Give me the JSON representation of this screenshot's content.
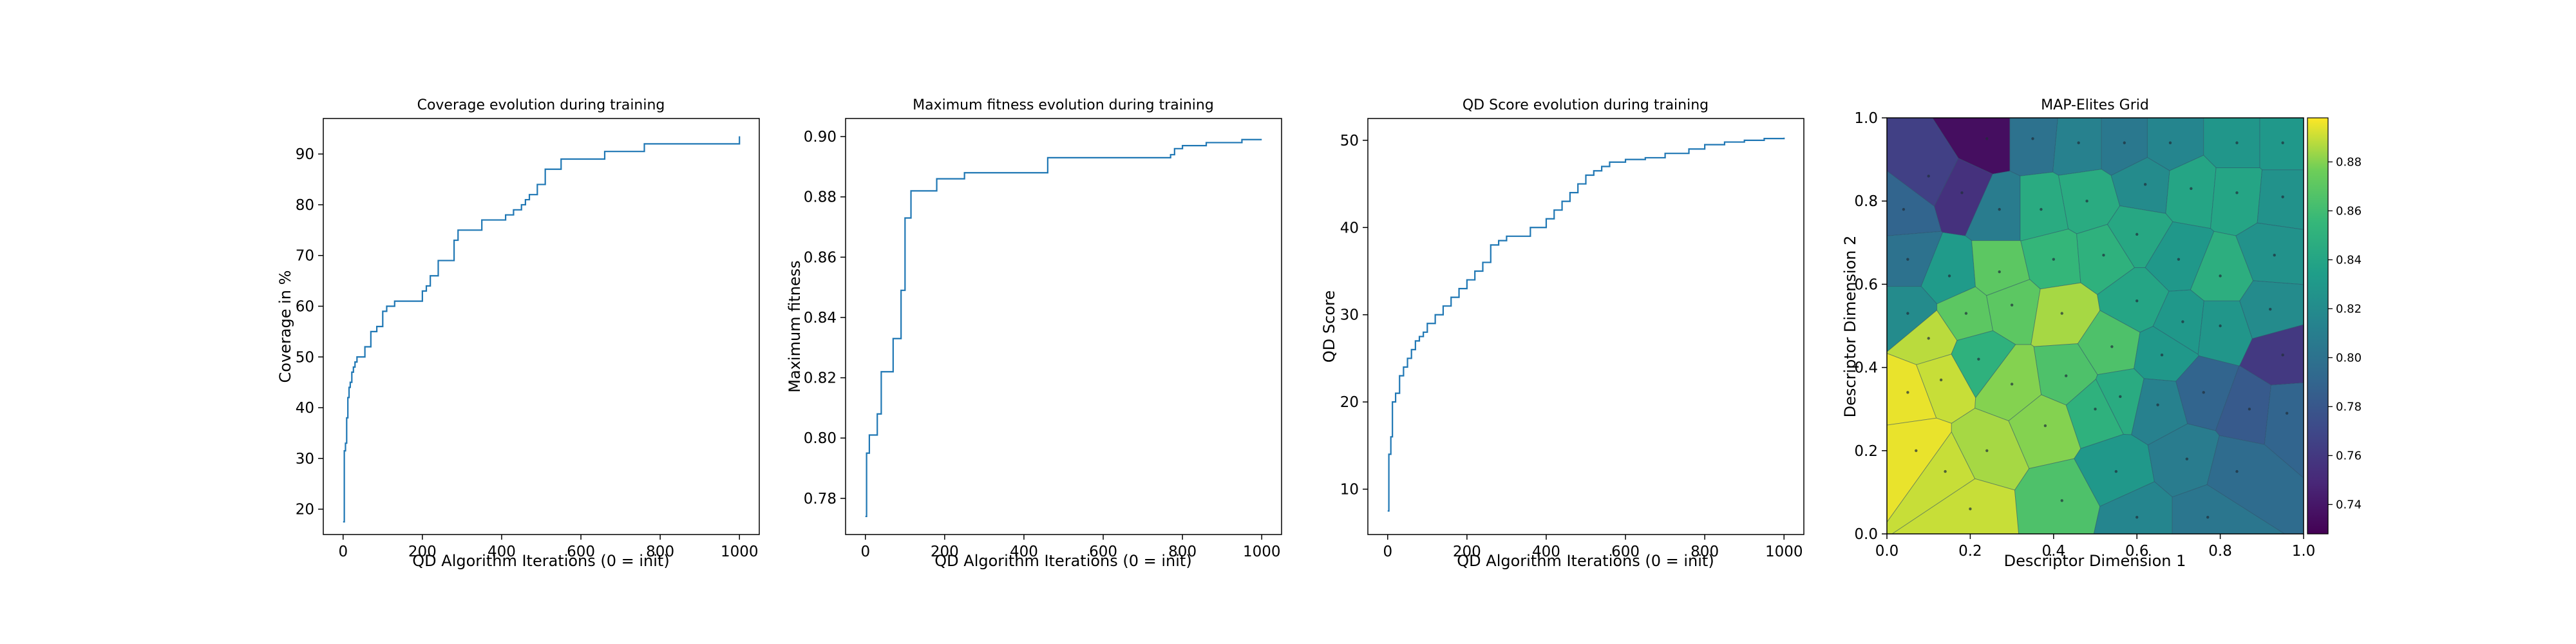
{
  "chart_data": [
    {
      "type": "line",
      "title": "Coverage evolution during training",
      "xlabel": "QD Algorithm Iterations (0 = init)",
      "ylabel": "Coverage in %",
      "xlim": [
        -50,
        1050
      ],
      "ylim": [
        15,
        97
      ],
      "xticks": [
        0,
        200,
        400,
        600,
        800,
        1000
      ],
      "yticks": [
        20,
        30,
        40,
        50,
        60,
        70,
        80,
        90
      ],
      "line_color": "#1f77b4",
      "x": [
        0,
        3,
        6,
        9,
        12,
        15,
        18,
        22,
        26,
        30,
        35,
        45,
        55,
        70,
        85,
        100,
        110,
        130,
        150,
        170,
        200,
        210,
        220,
        240,
        270,
        280,
        290,
        300,
        350,
        400,
        410,
        420,
        430,
        450,
        460,
        470,
        490,
        510,
        550,
        660,
        760,
        1000
      ],
      "y": [
        17.5,
        31.5,
        33,
        38,
        42,
        44,
        45,
        47,
        48,
        49,
        50,
        50,
        52,
        55,
        56,
        59,
        60,
        61,
        61,
        61,
        63,
        64,
        66,
        69,
        69,
        73,
        75,
        75,
        77,
        77,
        78,
        78,
        79,
        80,
        81,
        82,
        84,
        87,
        89,
        90.5,
        92,
        93.5
      ]
    },
    {
      "type": "line",
      "title": "Maximum fitness evolution during training",
      "xlabel": "QD Algorithm Iterations (0 = init)",
      "ylabel": "Maximum fitness",
      "xlim": [
        -50,
        1050
      ],
      "ylim": [
        0.768,
        0.906
      ],
      "xticks": [
        0,
        200,
        400,
        600,
        800,
        1000
      ],
      "yticks": [
        0.78,
        0.8,
        0.82,
        0.84,
        0.86,
        0.88,
        0.9
      ],
      "line_color": "#1f77b4",
      "x": [
        0,
        3,
        10,
        30,
        40,
        70,
        90,
        100,
        115,
        130,
        150,
        180,
        250,
        460,
        770,
        780,
        800,
        860,
        900,
        950,
        1000
      ],
      "y": [
        0.774,
        0.795,
        0.801,
        0.808,
        0.822,
        0.833,
        0.849,
        0.873,
        0.882,
        0.882,
        0.882,
        0.886,
        0.888,
        0.893,
        0.894,
        0.896,
        0.897,
        0.898,
        0.898,
        0.899,
        0.899
      ]
    },
    {
      "type": "line",
      "title": "QD Score evolution during training",
      "xlabel": "QD Algorithm Iterations (0 = init)",
      "ylabel": "QD Score",
      "xlim": [
        -50,
        1050
      ],
      "ylim": [
        4.8,
        52.5
      ],
      "xticks": [
        0,
        200,
        400,
        600,
        800,
        1000
      ],
      "yticks": [
        10,
        20,
        30,
        40,
        50
      ],
      "line_color": "#1f77b4",
      "x": [
        0,
        3,
        8,
        12,
        20,
        30,
        40,
        50,
        60,
        70,
        80,
        90,
        100,
        120,
        140,
        160,
        180,
        200,
        220,
        240,
        260,
        280,
        300,
        330,
        360,
        390,
        400,
        420,
        440,
        460,
        480,
        500,
        520,
        540,
        560,
        600,
        650,
        700,
        760,
        800,
        850,
        900,
        950,
        1000
      ],
      "y": [
        7.5,
        14,
        16,
        20,
        21,
        23,
        24,
        25,
        26,
        27,
        27.5,
        28,
        29,
        30,
        31,
        32,
        33,
        34,
        35,
        36,
        38,
        38.5,
        39,
        39,
        40,
        40,
        41,
        42,
        43,
        44,
        45,
        46,
        46.5,
        47,
        47.5,
        47.8,
        48,
        48.5,
        49,
        49.5,
        49.8,
        50,
        50.2,
        50.3
      ]
    },
    {
      "type": "heatmap",
      "title": "MAP-Elites Grid",
      "xlabel": "Descriptor Dimension 1",
      "ylabel": "Descriptor Dimension 2",
      "xlim": [
        0.0,
        1.0
      ],
      "ylim": [
        0.0,
        1.0
      ],
      "xticks": [
        "0.0",
        "0.2",
        "0.4",
        "0.6",
        "0.8",
        "1.0"
      ],
      "yticks": [
        "0.0",
        "0.2",
        "0.4",
        "0.6",
        "0.8",
        "1.0"
      ],
      "colorbar": {
        "colormap": "viridis",
        "vmin": 0.728,
        "vmax": 0.898,
        "ticks": [
          "0.74",
          "0.76",
          "0.78",
          "0.80",
          "0.82",
          "0.84",
          "0.86",
          "0.88"
        ]
      },
      "cells": [
        {
          "x": 0.24,
          "y": 0.95,
          "value": 0.735
        },
        {
          "x": 0.35,
          "y": 0.95,
          "value": 0.8
        },
        {
          "x": 0.46,
          "y": 0.94,
          "value": 0.812
        },
        {
          "x": 0.57,
          "y": 0.94,
          "value": 0.805
        },
        {
          "x": 0.68,
          "y": 0.94,
          "value": 0.815
        },
        {
          "x": 0.84,
          "y": 0.94,
          "value": 0.828
        },
        {
          "x": 0.95,
          "y": 0.94,
          "value": 0.83
        },
        {
          "x": 0.1,
          "y": 0.86,
          "value": 0.765
        },
        {
          "x": 0.18,
          "y": 0.82,
          "value": 0.755
        },
        {
          "x": 0.04,
          "y": 0.78,
          "value": 0.79
        },
        {
          "x": 0.27,
          "y": 0.78,
          "value": 0.808
        },
        {
          "x": 0.37,
          "y": 0.78,
          "value": 0.845
        },
        {
          "x": 0.48,
          "y": 0.8,
          "value": 0.845
        },
        {
          "x": 0.62,
          "y": 0.84,
          "value": 0.82
        },
        {
          "x": 0.73,
          "y": 0.83,
          "value": 0.84
        },
        {
          "x": 0.84,
          "y": 0.82,
          "value": 0.84
        },
        {
          "x": 0.95,
          "y": 0.81,
          "value": 0.825
        },
        {
          "x": 0.05,
          "y": 0.66,
          "value": 0.8
        },
        {
          "x": 0.15,
          "y": 0.62,
          "value": 0.832
        },
        {
          "x": 0.27,
          "y": 0.63,
          "value": 0.87
        },
        {
          "x": 0.4,
          "y": 0.66,
          "value": 0.855
        },
        {
          "x": 0.52,
          "y": 0.67,
          "value": 0.85
        },
        {
          "x": 0.6,
          "y": 0.72,
          "value": 0.842
        },
        {
          "x": 0.7,
          "y": 0.66,
          "value": 0.83
        },
        {
          "x": 0.8,
          "y": 0.62,
          "value": 0.848
        },
        {
          "x": 0.93,
          "y": 0.67,
          "value": 0.825
        },
        {
          "x": 0.05,
          "y": 0.53,
          "value": 0.82
        },
        {
          "x": 0.1,
          "y": 0.47,
          "value": 0.888
        },
        {
          "x": 0.19,
          "y": 0.53,
          "value": 0.87
        },
        {
          "x": 0.3,
          "y": 0.55,
          "value": 0.87
        },
        {
          "x": 0.42,
          "y": 0.53,
          "value": 0.885
        },
        {
          "x": 0.6,
          "y": 0.56,
          "value": 0.84
        },
        {
          "x": 0.71,
          "y": 0.51,
          "value": 0.83
        },
        {
          "x": 0.8,
          "y": 0.5,
          "value": 0.828
        },
        {
          "x": 0.92,
          "y": 0.54,
          "value": 0.82
        },
        {
          "x": 0.05,
          "y": 0.34,
          "value": 0.895
        },
        {
          "x": 0.22,
          "y": 0.42,
          "value": 0.85
        },
        {
          "x": 0.13,
          "y": 0.37,
          "value": 0.89
        },
        {
          "x": 0.3,
          "y": 0.36,
          "value": 0.88
        },
        {
          "x": 0.43,
          "y": 0.38,
          "value": 0.865
        },
        {
          "x": 0.54,
          "y": 0.45,
          "value": 0.865
        },
        {
          "x": 0.66,
          "y": 0.43,
          "value": 0.83
        },
        {
          "x": 0.95,
          "y": 0.43,
          "value": 0.76
        },
        {
          "x": 0.07,
          "y": 0.2,
          "value": 0.895
        },
        {
          "x": 0.14,
          "y": 0.15,
          "value": 0.89
        },
        {
          "x": 0.24,
          "y": 0.2,
          "value": 0.885
        },
        {
          "x": 0.38,
          "y": 0.26,
          "value": 0.88
        },
        {
          "x": 0.5,
          "y": 0.3,
          "value": 0.85
        },
        {
          "x": 0.56,
          "y": 0.33,
          "value": 0.845
        },
        {
          "x": 0.65,
          "y": 0.31,
          "value": 0.812
        },
        {
          "x": 0.76,
          "y": 0.34,
          "value": 0.79
        },
        {
          "x": 0.87,
          "y": 0.3,
          "value": 0.782
        },
        {
          "x": 0.96,
          "y": 0.29,
          "value": 0.79
        },
        {
          "x": 0.2,
          "y": 0.06,
          "value": 0.89
        },
        {
          "x": 0.42,
          "y": 0.08,
          "value": 0.865
        },
        {
          "x": 0.55,
          "y": 0.15,
          "value": 0.83
        },
        {
          "x": 0.72,
          "y": 0.18,
          "value": 0.808
        },
        {
          "x": 0.84,
          "y": 0.15,
          "value": 0.795
        },
        {
          "x": 0.6,
          "y": 0.04,
          "value": 0.815
        },
        {
          "x": 0.77,
          "y": 0.04,
          "value": 0.803
        }
      ]
    }
  ]
}
